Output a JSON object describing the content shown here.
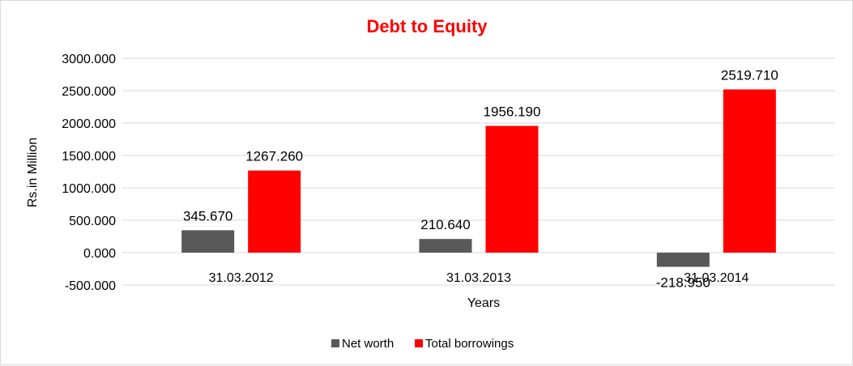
{
  "chart_data": {
    "type": "bar",
    "title": "Debt to Equity",
    "xlabel": "Years",
    "ylabel": "Rs.in Million",
    "categories": [
      "31.03.2012",
      "31.03.2013",
      "31.03.2014"
    ],
    "series": [
      {
        "name": "Net worth",
        "color": "#595959",
        "values": [
          345.67,
          210.64,
          -218.95
        ],
        "labels": [
          "345.670",
          "210.640",
          "-218.950"
        ]
      },
      {
        "name": "Total borrowings",
        "color": "#ff0000",
        "values": [
          1267.26,
          1956.19,
          2519.71
        ],
        "labels": [
          "1267.260",
          "1956.190",
          "2519.710"
        ]
      }
    ],
    "ylim": [
      -500,
      3000
    ],
    "yticks": [
      3000,
      2500,
      2000,
      1500,
      1000,
      500,
      0,
      -500
    ],
    "ytick_labels": [
      "3000.000",
      "2500.000",
      "2000.000",
      "1500.000",
      "1000.000",
      "500.000",
      "0.000",
      "-500.000"
    ],
    "grid": true,
    "legend_position": "bottom",
    "title_color": "#ff0000"
  }
}
